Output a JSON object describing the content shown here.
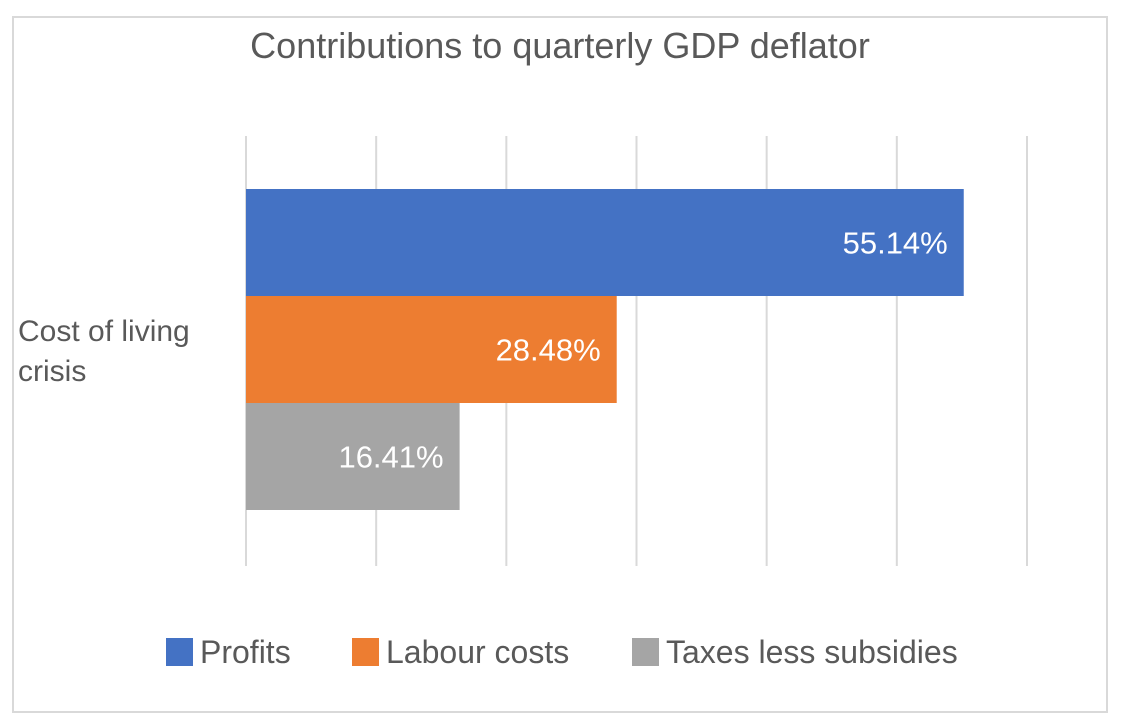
{
  "chart_data": {
    "type": "bar",
    "orientation": "horizontal",
    "title": "Contributions to quarterly GDP deflator",
    "categories": [
      "Cost of living crisis"
    ],
    "category_label_lines": [
      "Cost of living",
      "crisis"
    ],
    "series": [
      {
        "name": "Profits",
        "values": [
          55.14
        ],
        "label": "55.14%",
        "color": "#4472C4"
      },
      {
        "name": "Labour costs",
        "values": [
          28.48
        ],
        "label": "28.48%",
        "color": "#ED7D31"
      },
      {
        "name": "Taxes less subsidies",
        "values": [
          16.41
        ],
        "label": "16.41%",
        "color": "#A5A5A5"
      }
    ],
    "xlim": [
      0,
      60
    ],
    "x_gridlines": [
      0,
      10,
      20,
      30,
      40,
      50,
      60
    ],
    "grid": true,
    "xlabel": "",
    "ylabel": "",
    "legend_position": "bottom"
  }
}
